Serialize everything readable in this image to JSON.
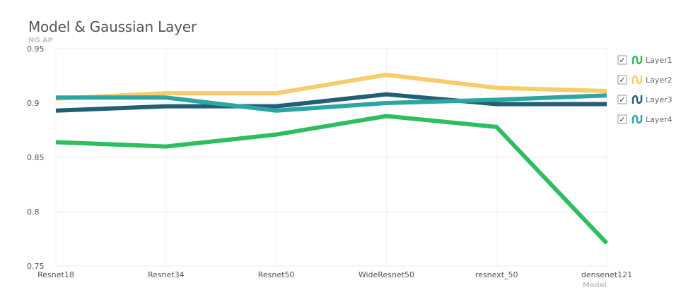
{
  "chart_data": {
    "type": "line",
    "title": "Model & Gaussian Layer",
    "xlabel": "Model",
    "ylabel": "NG AP",
    "categories": [
      "Resnet18",
      "Resnet34",
      "Resnet50",
      "WideResnet50",
      "resnext_50",
      "densenet121"
    ],
    "ylim": [
      0.75,
      0.95
    ],
    "yticks": [
      "0.95",
      "0.9",
      "0.85",
      "0.8",
      "0.75"
    ],
    "grid": true,
    "legend_position": "right",
    "series": [
      {
        "name": "Layer1",
        "color": "#2dbe5f",
        "values": [
          0.864,
          0.86,
          0.871,
          0.888,
          0.878,
          0.771
        ]
      },
      {
        "name": "Layer2",
        "color": "#f7cd6a",
        "values": [
          0.904,
          0.909,
          0.909,
          0.926,
          0.914,
          0.911
        ]
      },
      {
        "name": "Layer3",
        "color": "#235e74",
        "values": [
          0.893,
          0.897,
          0.897,
          0.908,
          0.899,
          0.899
        ]
      },
      {
        "name": "Layer4",
        "color": "#2ba6a2",
        "values": [
          0.905,
          0.905,
          0.893,
          0.9,
          0.903,
          0.907
        ]
      }
    ]
  },
  "legend": {
    "checked_mark": "✓",
    "icon": "series-swatch-icon"
  }
}
